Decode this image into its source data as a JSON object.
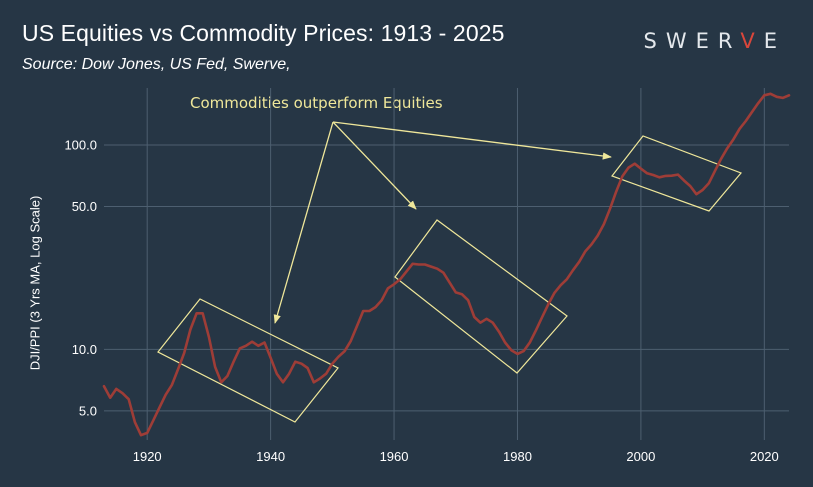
{
  "header": {
    "title": "US Equities vs Commodity Prices: 1913 - 2025",
    "subtitle": "Source: Dow Jones, US Fed, Swerve,",
    "logo_parts": [
      "SWER",
      "V",
      "E"
    ]
  },
  "annotation": {
    "text": "Commodities outperform Equities"
  },
  "colors": {
    "background": "#263645",
    "grid": "#4d5f70",
    "line": "#9e3d37",
    "annotation": "#efe79a",
    "logo_accent": "#d9463b"
  },
  "chart_data": {
    "type": "line",
    "title": "US Equities vs Commodity Prices: 1913 - 2025",
    "xlabel": "",
    "ylabel": "DJI/PPI (3 Yrs MA, Log Scale)",
    "yscale": "log",
    "xlim": [
      1913,
      2024
    ],
    "ylim": [
      3.6,
      190
    ],
    "x_ticks": [
      1920,
      1940,
      1960,
      1980,
      2000,
      2020
    ],
    "y_ticks": [
      5.0,
      10.0,
      50.0,
      100.0
    ],
    "y_tick_labels": [
      "5.0",
      "10.0",
      "50.0",
      "100.0"
    ],
    "series": [
      {
        "name": "DJI/PPI",
        "x": [
          1913,
          1914,
          1915,
          1916,
          1917,
          1918,
          1919,
          1920,
          1921,
          1922,
          1923,
          1924,
          1925,
          1926,
          1927,
          1928,
          1929,
          1930,
          1931,
          1932,
          1933,
          1934,
          1935,
          1936,
          1937,
          1938,
          1939,
          1940,
          1941,
          1942,
          1943,
          1944,
          1945,
          1946,
          1947,
          1948,
          1949,
          1950,
          1951,
          1952,
          1953,
          1954,
          1955,
          1956,
          1957,
          1958,
          1959,
          1960,
          1961,
          1962,
          1963,
          1964,
          1965,
          1966,
          1967,
          1968,
          1969,
          1970,
          1971,
          1972,
          1973,
          1974,
          1975,
          1976,
          1977,
          1978,
          1979,
          1980,
          1981,
          1982,
          1983,
          1984,
          1985,
          1986,
          1987,
          1988,
          1989,
          1990,
          1991,
          1992,
          1993,
          1994,
          1995,
          1996,
          1997,
          1998,
          1999,
          2000,
          2001,
          2002,
          2003,
          2004,
          2005,
          2006,
          2007,
          2008,
          2009,
          2010,
          2011,
          2012,
          2013,
          2014,
          2015,
          2016,
          2017,
          2018,
          2019,
          2020,
          2021,
          2022,
          2023,
          2024
        ],
        "values": [
          6.6,
          5.8,
          6.4,
          6.1,
          5.7,
          4.4,
          3.8,
          3.9,
          4.5,
          5.2,
          6.0,
          6.7,
          8.0,
          9.6,
          12.5,
          15.0,
          15.0,
          11.5,
          8.2,
          6.9,
          7.4,
          8.7,
          10.1,
          10.4,
          10.9,
          10.4,
          10.8,
          9.1,
          7.6,
          6.9,
          7.6,
          8.7,
          8.5,
          8.1,
          6.9,
          7.2,
          7.6,
          8.5,
          9.2,
          9.8,
          11.0,
          13.0,
          15.4,
          15.4,
          16.1,
          17.4,
          19.9,
          20.8,
          22.0,
          24.0,
          26.2,
          26.0,
          26.0,
          25.4,
          24.8,
          23.7,
          21.2,
          19.0,
          18.6,
          17.4,
          14.4,
          13.5,
          14.1,
          13.5,
          12.2,
          10.8,
          9.9,
          9.5,
          9.8,
          10.8,
          12.4,
          14.4,
          16.6,
          18.9,
          20.6,
          22.0,
          24.4,
          26.8,
          30.2,
          32.6,
          36.0,
          41.0,
          48.7,
          59.1,
          70.3,
          77.5,
          81.0,
          76.6,
          72.7,
          71.3,
          69.5,
          70.6,
          70.7,
          71.6,
          66.9,
          62.9,
          57.4,
          60.2,
          64.9,
          74.5,
          85.6,
          96.4,
          106.7,
          120.0,
          131.0,
          145.0,
          160.0,
          175.0,
          178.0,
          172.0,
          170.0,
          175.0
        ]
      }
    ],
    "annotation": {
      "text": "Commodities outperform Equities",
      "pointers_to_years": [
        1941,
        1967,
        1997
      ],
      "highlighted_periods": [
        [
          1921,
          1950
        ],
        [
          1960,
          1988
        ],
        [
          1994,
          2016
        ]
      ]
    }
  }
}
